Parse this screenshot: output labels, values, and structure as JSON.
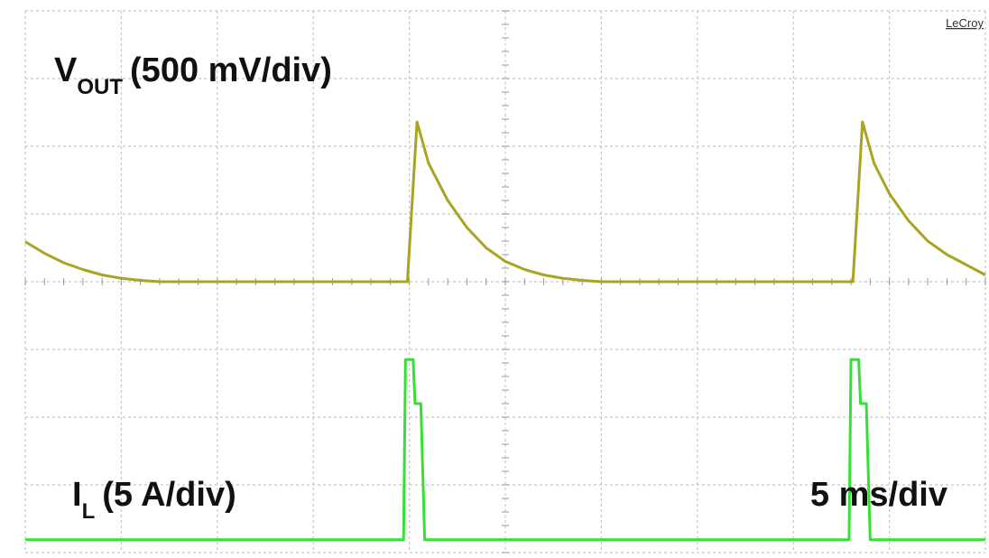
{
  "chart_data": {
    "type": "line",
    "brand": "LeCroy",
    "labels": [
      {
        "symbol": "V",
        "subscript": "OUT",
        "text": "(500 mV/div)"
      },
      {
        "symbol": "I",
        "subscript": "L",
        "text": "(5 A/div)"
      }
    ],
    "timebase": "5 ms/div",
    "xlim": [
      0,
      50
    ],
    "ylim": [
      -4,
      4
    ],
    "xticks": [
      0,
      5,
      10,
      15,
      20,
      25,
      30,
      35,
      40,
      45,
      50
    ],
    "yticks": [
      -4,
      -3,
      -2,
      -1,
      0,
      1,
      2,
      3,
      4
    ],
    "grid": true,
    "series": [
      {
        "color": "#a9a424",
        "x": [
          0,
          1,
          2,
          3,
          4,
          5,
          6,
          7,
          10,
          15,
          19.9,
          20.4,
          21,
          22,
          23,
          24,
          25,
          26,
          27,
          28,
          29,
          30,
          35,
          43.1,
          43.6,
          44.2,
          45,
          46,
          47,
          48,
          49,
          50
        ],
        "values": [
          0.59,
          0.42,
          0.28,
          0.18,
          0.1,
          0.05,
          0.02,
          0,
          0,
          0,
          0,
          2.36,
          1.75,
          1.2,
          0.8,
          0.5,
          0.3,
          0.18,
          0.1,
          0.05,
          0.02,
          0,
          0,
          0,
          2.36,
          1.75,
          1.3,
          0.9,
          0.6,
          0.4,
          0.25,
          0.1
        ]
      },
      {
        "color": "#35e035",
        "x": [
          0,
          19.7,
          19.8,
          20.2,
          20.3,
          20.6,
          20.8,
          42.9,
          43.0,
          43.4,
          43.5,
          43.8,
          44.0,
          50
        ],
        "values": [
          -3.81,
          -3.81,
          -1.15,
          -1.15,
          -1.8,
          -1.8,
          -3.81,
          -3.81,
          -1.15,
          -1.15,
          -1.8,
          -1.8,
          -3.81,
          -3.81
        ]
      }
    ]
  }
}
